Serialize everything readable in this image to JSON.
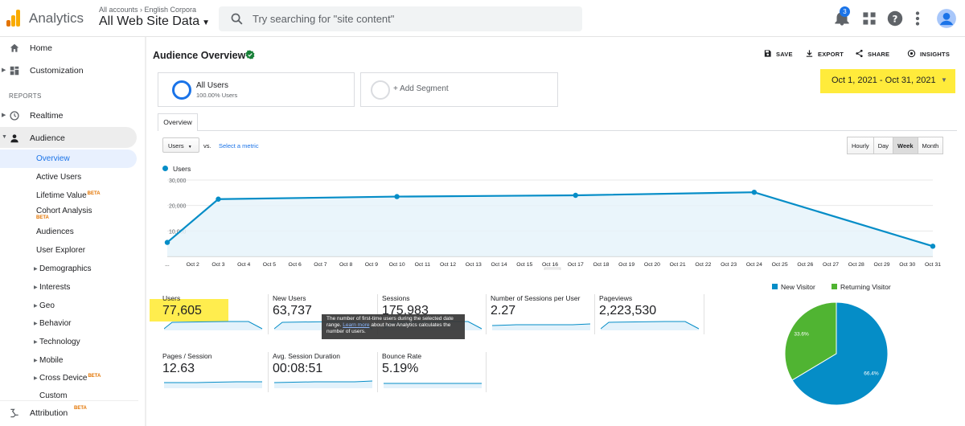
{
  "header": {
    "app_name": "Analytics",
    "account_crumb": "All accounts › English Corpora",
    "view_name": "All Web Site Data",
    "search_placeholder": "Try searching for \"site content\"",
    "notification_count": "3",
    "icons": [
      "notifications-icon",
      "apps-grid-icon",
      "help-icon",
      "more-vert-icon",
      "account-avatar"
    ]
  },
  "sidebar": {
    "home": "Home",
    "customization": "Customization",
    "reports_label": "REPORTS",
    "realtime": "Realtime",
    "audience": "Audience",
    "audience_items": [
      {
        "label": "Overview"
      },
      {
        "label": "Active Users"
      },
      {
        "label": "Lifetime Value",
        "beta": "BETA"
      },
      {
        "label": "Cohort Analysis",
        "beta": "BETA"
      },
      {
        "label": "Audiences"
      },
      {
        "label": "User Explorer"
      },
      {
        "label": "Demographics"
      },
      {
        "label": "Interests"
      },
      {
        "label": "Geo"
      },
      {
        "label": "Behavior"
      },
      {
        "label": "Technology"
      },
      {
        "label": "Mobile"
      },
      {
        "label": "Cross Device",
        "beta": "BETA"
      },
      {
        "label": "Custom"
      }
    ],
    "attribution": "Attribution",
    "attribution_beta": "BETA"
  },
  "main": {
    "title": "Audience Overview",
    "actions": {
      "save": "SAVE",
      "export": "EXPORT",
      "share": "SHARE",
      "insights": "INSIGHTS"
    },
    "segments": [
      {
        "name": "All Users",
        "sub": "100.00% Users"
      },
      {
        "name": "+ Add Segment"
      }
    ],
    "date_range": "Oct 1, 2021 - Oct 31, 2021",
    "tab": "Overview",
    "metric_select": "Users",
    "vs": "vs.",
    "select_metric": "Select a metric",
    "periods": [
      "Hourly",
      "Day",
      "Week",
      "Month"
    ],
    "active_period": "Week",
    "chart_legend": "Users",
    "tooltip": {
      "text_before": "The number of first-time users during the selected date range.",
      "link": "Learn more",
      "text_after": "about how Analytics calculates the number of users."
    },
    "metrics": [
      {
        "label": "Users",
        "value": "77,605"
      },
      {
        "label": "New Users",
        "value": "63,737"
      },
      {
        "label": "Sessions",
        "value": "175,983"
      },
      {
        "label": "Number of Sessions per User",
        "value": "2.27"
      },
      {
        "label": "Pageviews",
        "value": "2,223,530"
      },
      {
        "label": "Pages / Session",
        "value": "12.63"
      },
      {
        "label": "Avg. Session Duration",
        "value": "00:08:51"
      },
      {
        "label": "Bounce Rate",
        "value": "5.19%"
      }
    ]
  },
  "colors": {
    "series": "#058dc7",
    "new_visitor": "#058dc7",
    "returning_visitor": "#50b432",
    "highlight": "#ffeb3b"
  },
  "chart_data": [
    {
      "type": "area",
      "series": [
        {
          "name": "Users",
          "x": [
            "Oct 1",
            "Oct 3",
            "Oct 10",
            "Oct 17",
            "Oct 24",
            "Oct 31"
          ],
          "values": [
            5500,
            22500,
            23500,
            24000,
            25200,
            4000
          ]
        }
      ],
      "x_tick_labels": [
        "...",
        "Oct 2",
        "Oct 3",
        "Oct 4",
        "Oct 5",
        "Oct 6",
        "Oct 7",
        "Oct 8",
        "Oct 9",
        "Oct 10",
        "Oct 11",
        "Oct 12",
        "Oct 13",
        "Oct 14",
        "Oct 15",
        "Oct 16",
        "Oct 17",
        "Oct 18",
        "Oct 19",
        "Oct 20",
        "Oct 21",
        "Oct 22",
        "Oct 23",
        "Oct 24",
        "Oct 25",
        "Oct 26",
        "Oct 27",
        "Oct 28",
        "Oct 29",
        "Oct 30",
        "Oct 31"
      ],
      "y_ticks": [
        "10,000",
        "20,000",
        "30,000"
      ],
      "ylim": [
        0,
        30000
      ],
      "grid": true
    },
    {
      "type": "pie",
      "categories": [
        "New Visitor",
        "Returning Visitor"
      ],
      "values": [
        66.4,
        33.6
      ],
      "data_labels": [
        "66.4%",
        "33.6%"
      ],
      "legend": "top"
    }
  ]
}
